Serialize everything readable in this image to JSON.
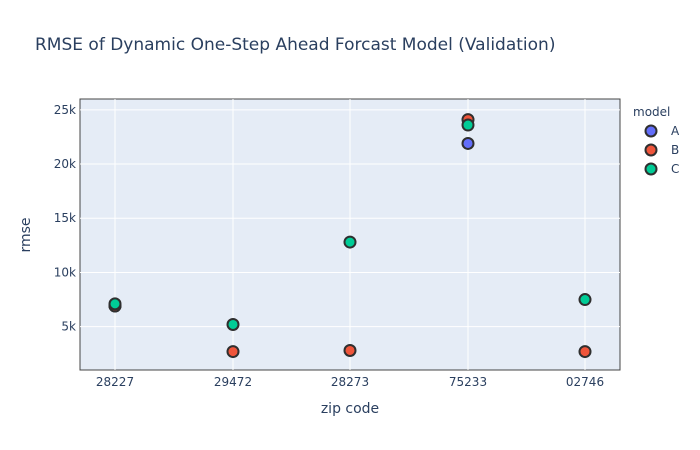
{
  "chart_data": {
    "type": "scatter",
    "title": "RMSE of Dynamic One-Step Ahead Forcast Model (Validation)",
    "xlabel": "zip code",
    "ylabel": "rmse",
    "categories": [
      "28227",
      "29472",
      "28273",
      "75233",
      "02746"
    ],
    "ylim": [
      1000,
      26000
    ],
    "yticks": [
      5000,
      10000,
      15000,
      20000,
      25000
    ],
    "ytick_labels": [
      "5k",
      "10k",
      "15k",
      "20k",
      "25k"
    ],
    "grid": true,
    "legend_title": "model",
    "legend_position": "right",
    "series": [
      {
        "name": "A",
        "color": "#636efa",
        "values": [
          6900,
          null,
          null,
          21900,
          null
        ]
      },
      {
        "name": "B",
        "color": "#EF553B",
        "values": [
          6900,
          2700,
          2800,
          24100,
          2700
        ]
      },
      {
        "name": "C",
        "color": "#00cc96",
        "values": [
          7100,
          5200,
          12800,
          23600,
          7500
        ]
      }
    ],
    "colors": {
      "plot_bg": "#e5ecf6",
      "grid": "#ffffff",
      "marker_edge": "#2f2f2f",
      "text": "#2a3f5f"
    }
  }
}
